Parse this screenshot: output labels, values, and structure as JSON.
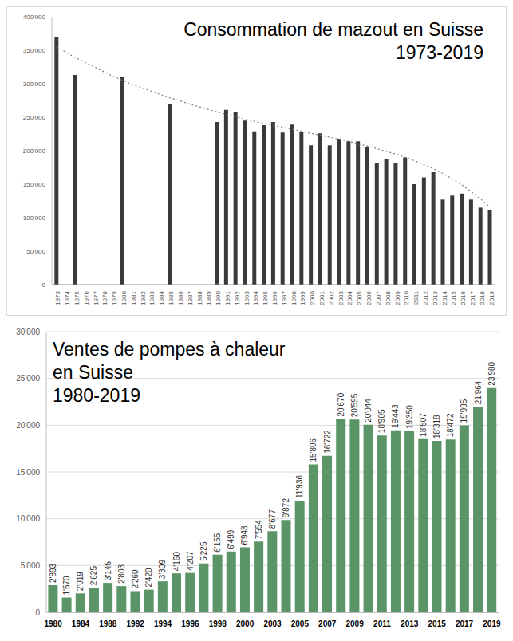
{
  "chart_data": [
    {
      "type": "bar",
      "title": "Consommation de mazout en Suisse",
      "subtitle": "1973-2019",
      "categories": [
        "1973",
        "1974",
        "1975",
        "1976",
        "1977",
        "1978",
        "1979",
        "1980",
        "1981",
        "1982",
        "1983",
        "1984",
        "1985",
        "1986",
        "1987",
        "1988",
        "1989",
        "1990",
        "1991",
        "1992",
        "1993",
        "1994",
        "1995",
        "1996",
        "1997",
        "1998",
        "1999",
        "2000",
        "2001",
        "2002",
        "2003",
        "2004",
        "2005",
        "2006",
        "2007",
        "2008",
        "2009",
        "2010",
        "2011",
        "2012",
        "2013",
        "2014",
        "2015",
        "2016",
        "2017",
        "2018",
        "2019"
      ],
      "series": [
        {
          "type": "bar",
          "color": "#3a3a3a",
          "values": [
            370000,
            null,
            313000,
            null,
            null,
            null,
            null,
            310000,
            null,
            null,
            null,
            null,
            270000,
            null,
            null,
            null,
            null,
            243000,
            261000,
            257000,
            245000,
            229000,
            238000,
            243000,
            227000,
            239000,
            228000,
            208000,
            226000,
            208000,
            218000,
            214000,
            214000,
            206000,
            181000,
            188000,
            182000,
            190000,
            150000,
            160000,
            168000,
            127000,
            133000,
            136000,
            127000,
            115000,
            111000
          ]
        },
        {
          "type": "line",
          "line_style": "dotted",
          "color": "#7f7f7f",
          "values": [
            355000,
            347000,
            339000,
            332000,
            325000,
            318000,
            311000,
            305000,
            299000,
            294000,
            289000,
            284000,
            279000,
            275000,
            270000,
            266000,
            262000,
            258000,
            254000,
            251000,
            247000,
            244000,
            241000,
            238000,
            235000,
            232000,
            229000,
            226000,
            223000,
            220000,
            217000,
            214000,
            210000,
            207000,
            203000,
            199000,
            195000,
            190000,
            185000,
            179000,
            173000,
            166000,
            158000,
            149000,
            139000,
            128000,
            116000
          ]
        }
      ],
      "ylim": [
        0,
        400000
      ],
      "yticks": [
        0,
        {
          "value": 50000,
          "label": "50'000"
        },
        {
          "value": 100000,
          "label": "100'000"
        },
        {
          "value": 150000,
          "label": "150'000"
        },
        {
          "value": 200000,
          "label": "200'000"
        },
        {
          "value": 250000,
          "label": "250'000"
        },
        {
          "value": 300000,
          "label": "300'000"
        },
        {
          "value": 350000,
          "label": "350'000"
        },
        {
          "value": 400000,
          "label": "400'000"
        }
      ],
      "grid": false
    },
    {
      "type": "bar",
      "title": "Ventes de pompes à chaleur\nen Suisse",
      "subtitle": "1980-2019",
      "categories": [
        "1980",
        null,
        "1984",
        null,
        "1988",
        null,
        "1992",
        null,
        "1994",
        null,
        "1996",
        null,
        "1998",
        null,
        "2000",
        null,
        "2003",
        null,
        "2005",
        null,
        "2007",
        null,
        "2009",
        null,
        "2011",
        null,
        "2013",
        null,
        "2015",
        null,
        "2017",
        null,
        "2019"
      ],
      "values": [
        2893,
        1570,
        2019,
        2625,
        3145,
        2803,
        2260,
        2420,
        3309,
        4160,
        4207,
        5225,
        6155,
        6499,
        6943,
        7554,
        8677,
        9872,
        11936,
        15806,
        16722,
        20670,
        20595,
        20044,
        18905,
        19443,
        19350,
        18507,
        18318,
        18472,
        19995,
        21964,
        23980
      ],
      "value_labels": [
        "2'893",
        "1'570",
        "2'019",
        "2'625",
        "3'145",
        "2'803",
        "2'260",
        "2'420",
        "3'309",
        "4'160",
        "4'207",
        "5'225",
        "6'155",
        "6'499",
        "6'943",
        "7'554",
        "8'677",
        "9'872",
        "11'936",
        "15'806",
        "16'722",
        "20'670",
        "20'595",
        "20'044",
        "18'905",
        "19'443",
        "19'350",
        "18'507",
        "18'318",
        "18'472",
        "19'995",
        "21'964",
        "23'980"
      ],
      "color": "#5a9467",
      "data_labels": true,
      "ylim": [
        0,
        30000
      ],
      "yticks": [
        0,
        {
          "value": 5000,
          "label": "5'000"
        },
        {
          "value": 10000,
          "label": "10'000"
        },
        {
          "value": 15000,
          "label": "15'000"
        },
        {
          "value": 20000,
          "label": "20'000"
        },
        {
          "value": 25000,
          "label": "25'000"
        },
        {
          "value": 30000,
          "label": "30'000"
        }
      ],
      "grid": true
    }
  ]
}
